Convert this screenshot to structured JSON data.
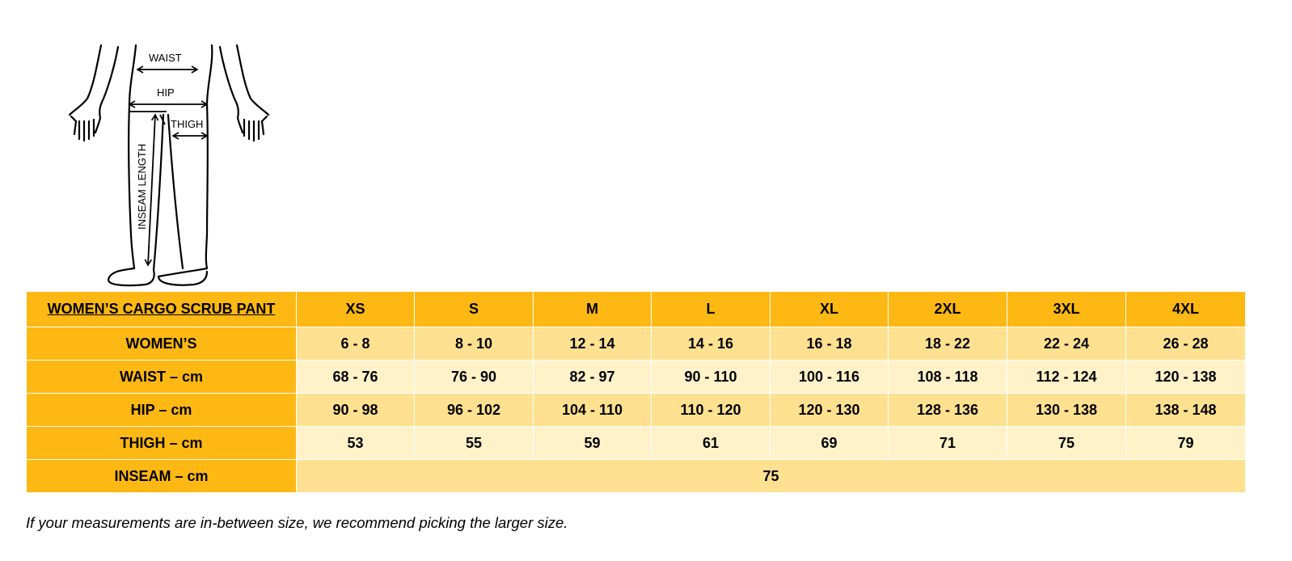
{
  "figure": {
    "waist_label": "WAIST",
    "hip_label": "HIP",
    "thigh_label": "THIGH",
    "inseam_label": "INSEAM LENGTH"
  },
  "table": {
    "title": "WOMEN’S CARGO SCRUB PANT",
    "sizes": [
      "XS",
      "S",
      "M",
      "L",
      "XL",
      "2XL",
      "3XL",
      "4XL"
    ],
    "rows": [
      {
        "label": "WOMEN’S",
        "values": [
          "6 - 8",
          "8 - 10",
          "12 - 14",
          "14 - 16",
          "16 - 18",
          "18 - 22",
          "22 - 24",
          "26 - 28"
        ]
      },
      {
        "label": "WAIST – cm",
        "values": [
          "68 - 76",
          "76 - 90",
          "82 - 97",
          "90 - 110",
          "100 - 116",
          "108 - 118",
          "112 - 124",
          "120 - 138"
        ]
      },
      {
        "label": "HIP – cm",
        "values": [
          "90 - 98",
          "96 - 102",
          "104 - 110",
          "110 - 120",
          "120 - 130",
          "128 - 136",
          "130 - 138",
          "138 - 148"
        ]
      },
      {
        "label": "THIGH – cm",
        "values": [
          "53",
          "55",
          "59",
          "61",
          "69",
          "71",
          "75",
          "79"
        ]
      }
    ],
    "inseam": {
      "label": "INSEAM – cm",
      "value": "75"
    }
  },
  "note": "If your measurements are in-between size, we recommend picking the larger size.",
  "colors": {
    "header": "#FDB813",
    "row_light": "#FFF2C9",
    "row_mid": "#FEE190"
  }
}
